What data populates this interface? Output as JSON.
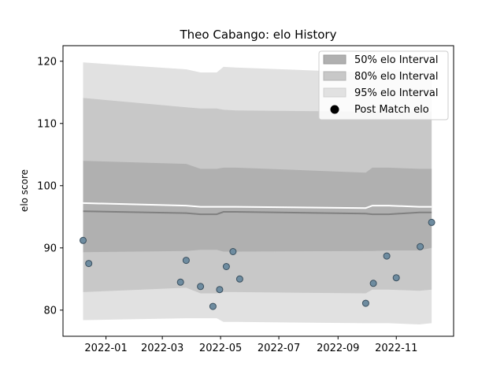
{
  "chart_data": {
    "type": "scatter",
    "title": "Theo Cabango: elo History",
    "xlabel": "",
    "ylabel": "elo score",
    "ylim": [
      75.8,
      122.5
    ],
    "xlim": [
      "2021-11-17",
      "2022-12-31"
    ],
    "x_ticks": [
      "2022-01-01",
      "2022-03-01",
      "2022-05-01",
      "2022-07-01",
      "2022-09-01",
      "2022-11-01"
    ],
    "x_tick_labels": [
      "2022-01",
      "2022-03",
      "2022-05",
      "2022-07",
      "2022-09",
      "2022-11"
    ],
    "y_ticks": [
      80,
      90,
      100,
      110,
      120
    ],
    "grid": false,
    "legend": {
      "position": "top-right",
      "entries": [
        {
          "label": "50% elo Interval",
          "kind": "band",
          "color": "#b0b0b0"
        },
        {
          "label": "80% elo Interval",
          "kind": "band",
          "color": "#c8c8c8"
        },
        {
          "label": "95% elo Interval",
          "kind": "band",
          "color": "#e1e1e1"
        },
        {
          "label": "Post Match elo",
          "kind": "marker",
          "color": "#000000"
        }
      ]
    },
    "bands": {
      "x": [
        "2021-12-08",
        "2022-03-26",
        "2022-04-10",
        "2022-04-27",
        "2022-05-04",
        "2022-05-17",
        "2022-09-30",
        "2022-10-07",
        "2022-10-24",
        "2022-11-25",
        "2022-12-08"
      ],
      "p95_upper": [
        119.8,
        118.7,
        118.2,
        118.2,
        119.1,
        119.0,
        118.2,
        118.6,
        118.6,
        118.6,
        118.6
      ],
      "p80_upper": [
        114.1,
        112.6,
        112.4,
        112.4,
        112.2,
        112.1,
        111.9,
        111.9,
        111.9,
        111.9,
        111.9
      ],
      "p50_upper": [
        104.0,
        103.5,
        102.7,
        102.7,
        102.9,
        102.9,
        102.1,
        102.9,
        102.9,
        102.7,
        102.7
      ],
      "p50_lower": [
        89.3,
        89.5,
        89.7,
        89.7,
        89.4,
        89.4,
        89.5,
        89.5,
        89.6,
        89.6,
        90.0
      ],
      "p80_lower": [
        82.9,
        83.6,
        82.7,
        82.7,
        82.9,
        82.9,
        82.7,
        83.3,
        83.3,
        83.1,
        83.3
      ],
      "p95_lower": [
        78.4,
        78.7,
        78.7,
        78.7,
        78.1,
        78.1,
        77.9,
        77.9,
        77.9,
        77.7,
        77.9
      ]
    },
    "expected_line": {
      "color": "#ffffff",
      "x": [
        "2021-12-08",
        "2022-03-26",
        "2022-04-10",
        "2022-04-27",
        "2022-05-04",
        "2022-05-17",
        "2022-09-30",
        "2022-10-07",
        "2022-10-24",
        "2022-11-25",
        "2022-12-08"
      ],
      "y": [
        97.2,
        96.8,
        96.6,
        96.6,
        96.6,
        96.6,
        96.4,
        96.8,
        96.8,
        96.6,
        96.6
      ]
    },
    "median_line": {
      "color": "#808080",
      "x": [
        "2021-12-08",
        "2022-03-26",
        "2022-04-10",
        "2022-04-27",
        "2022-05-04",
        "2022-05-17",
        "2022-09-30",
        "2022-10-07",
        "2022-10-24",
        "2022-11-25",
        "2022-12-08"
      ],
      "y": [
        95.9,
        95.6,
        95.4,
        95.4,
        95.8,
        95.8,
        95.5,
        95.4,
        95.4,
        95.7,
        95.7
      ]
    },
    "series": [
      {
        "kind": "points",
        "color": "#6e8ca0",
        "x": [
          "2021-12-08",
          "2021-12-14",
          "2022-03-20",
          "2022-03-26",
          "2022-04-10",
          "2022-04-23",
          "2022-04-30",
          "2022-05-07",
          "2022-05-14",
          "2022-05-21",
          "2022-09-30",
          "2022-10-08",
          "2022-10-22",
          "2022-11-01",
          "2022-11-26",
          "2022-12-08"
        ],
        "y": [
          91.2,
          87.5,
          84.5,
          88.0,
          83.8,
          80.6,
          83.3,
          87.0,
          89.4,
          85.0,
          81.1,
          84.3,
          88.7,
          85.2,
          90.2,
          94.1
        ]
      }
    ]
  }
}
